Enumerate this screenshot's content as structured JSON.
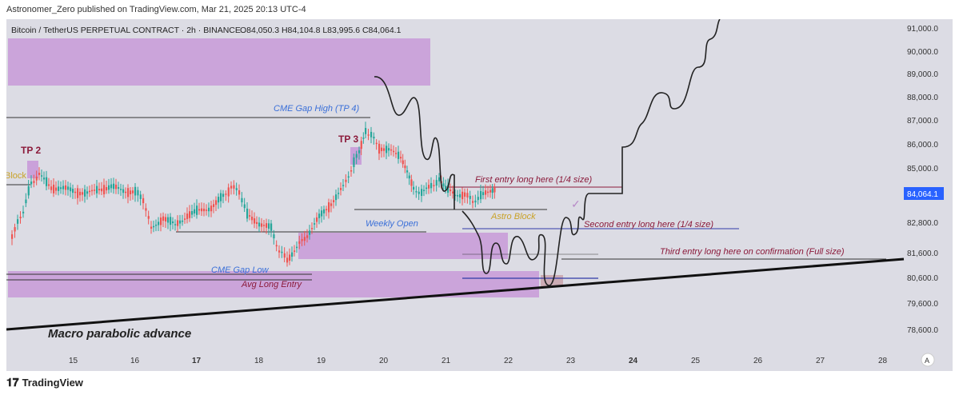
{
  "header": {
    "publisher_line": "Astronomer_Zero published on TradingView.com, Mar 21, 2025 20:13 UTC-4"
  },
  "chart_data": {
    "type": "candlestick",
    "symbol_line": "Bitcoin / TetherUS PERPETUAL CONTRACT · 2h · BINANCE",
    "ohlc_line": "O84,050.3 H84,104.8 L83,995.6 C84,064.1",
    "last_price_label": "84,064.1",
    "y_ticks": [
      "91,000.0",
      "90,000.0",
      "89,000.0",
      "88,000.0",
      "87,000.0",
      "86,000.0",
      "85,000.0",
      "82,800.0",
      "81,600.0",
      "80,600.0",
      "79,600.0",
      "78,600.0"
    ],
    "x_ticks": [
      "15",
      "16",
      "17",
      "18",
      "19",
      "20",
      "21",
      "22",
      "23",
      "24",
      "25",
      "26",
      "27",
      "28"
    ],
    "ylim": [
      77800,
      91500
    ],
    "annotations": {
      "tp2": "TP 2",
      "tp3": "TP 3",
      "block_left": "Block",
      "cme_gap_high": "CME Gap High (TP 4)",
      "weekly_open": "Weekly Open",
      "cme_gap_low": "CME Gap Low",
      "avg_long_entry": "Avg Long Entry",
      "astro_block": "Astro Block",
      "first_entry": "First entry long here (1/4 size)",
      "second_entry": "Second entry long here (1/4 size)",
      "third_entry": "Third entry long here on confirmation (Full size)",
      "macro": "Macro parabolic advance"
    },
    "colors": {
      "up": "#26a69a",
      "down": "#ef5350",
      "zone": "#c89ad8",
      "annotation_red": "#8b1a3a",
      "annotation_blue": "#3a6fd8",
      "annotation_gold": "#c9a227",
      "price_tag": "#2962ff"
    }
  },
  "footer": {
    "brand": "TradingView"
  }
}
